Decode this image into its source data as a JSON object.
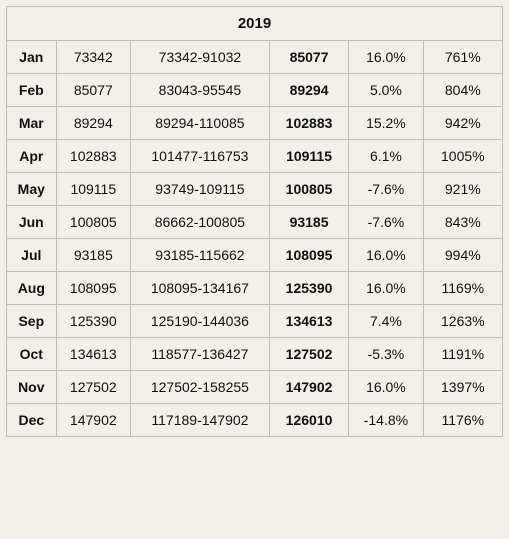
{
  "table": {
    "year": "2019",
    "background_color": "#f3f0e9",
    "border_color": "#bfbdb7",
    "font_family": "Arial",
    "header_fontsize": 15,
    "cell_fontsize": 14,
    "columns": [
      "month",
      "open",
      "range",
      "close",
      "mo_pct",
      "total_pct"
    ],
    "column_widths_pct": [
      10,
      15,
      28,
      16,
      15,
      16
    ],
    "rows": [
      {
        "month": "Jan",
        "open": "73342",
        "range": "73342-91032",
        "close": "85077",
        "mo": "16.0%",
        "total": "761%"
      },
      {
        "month": "Feb",
        "open": "85077",
        "range": "83043-95545",
        "close": "89294",
        "mo": "5.0%",
        "total": "804%"
      },
      {
        "month": "Mar",
        "open": "89294",
        "range": "89294-110085",
        "close": "102883",
        "mo": "15.2%",
        "total": "942%"
      },
      {
        "month": "Apr",
        "open": "102883",
        "range": "101477-116753",
        "close": "109115",
        "mo": "6.1%",
        "total": "1005%"
      },
      {
        "month": "May",
        "open": "109115",
        "range": "93749-109115",
        "close": "100805",
        "mo": "-7.6%",
        "total": "921%"
      },
      {
        "month": "Jun",
        "open": "100805",
        "range": "86662-100805",
        "close": "93185",
        "mo": "-7.6%",
        "total": "843%"
      },
      {
        "month": "Jul",
        "open": "93185",
        "range": "93185-115662",
        "close": "108095",
        "mo": "16.0%",
        "total": "994%"
      },
      {
        "month": "Aug",
        "open": "108095",
        "range": "108095-134167",
        "close": "125390",
        "mo": "16.0%",
        "total": "1169%"
      },
      {
        "month": "Sep",
        "open": "125390",
        "range": "125190-144036",
        "close": "134613",
        "mo": "7.4%",
        "total": "1263%"
      },
      {
        "month": "Oct",
        "open": "134613",
        "range": "118577-136427",
        "close": "127502",
        "mo": "-5.3%",
        "total": "1191%"
      },
      {
        "month": "Nov",
        "open": "127502",
        "range": "127502-158255",
        "close": "147902",
        "mo": "16.0%",
        "total": "1397%"
      },
      {
        "month": "Dec",
        "open": "147902",
        "range": "117189-147902",
        "close": "126010",
        "mo": "-14.8%",
        "total": "1176%"
      }
    ]
  }
}
